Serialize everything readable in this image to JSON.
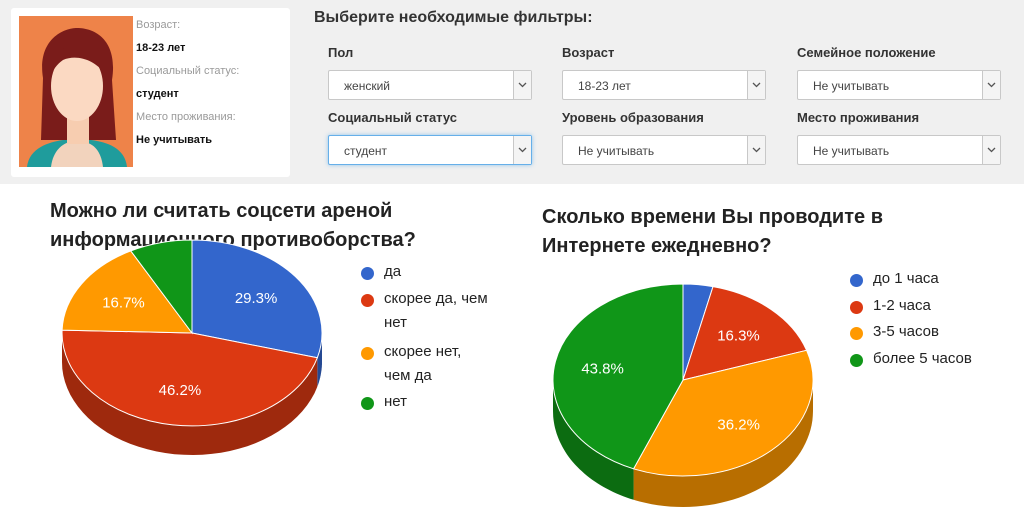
{
  "profile": {
    "age_label": "Возраст:",
    "age_value": "18-23 лет",
    "status_label": "Социальный статус:",
    "status_value": "студент",
    "residence_label": "Место проживания:",
    "residence_value": "Не учитывать",
    "avatar_icon": "female-avatar-icon"
  },
  "filters": {
    "title": "Выберите необходимые фильтры:",
    "items": [
      {
        "label": "Пол",
        "value": "женский"
      },
      {
        "label": "Возраст",
        "value": "18-23 лет"
      },
      {
        "label": "Семейное положение",
        "value": "Не учитывать"
      },
      {
        "label": "Социальный статус",
        "value": "студент"
      },
      {
        "label": "Уровень образования",
        "value": "Не учитывать"
      },
      {
        "label": "Место проживания",
        "value": "Не учитывать"
      }
    ]
  },
  "chart_data": [
    {
      "type": "pie",
      "title_lines": [
        "Можно ли считать соцсети ареной",
        "информационного противоборства?"
      ],
      "legend_position": "right",
      "slices": [
        {
          "label": "да",
          "label_lines": [
            "да"
          ],
          "value": 29.3,
          "color": "#3366cc",
          "data_label": "29.3%"
        },
        {
          "label": "скорее да, чем нет",
          "label_lines": [
            "скорее да, чем",
            "нет"
          ],
          "value": 46.2,
          "color": "#dc3912",
          "data_label": "46.2%"
        },
        {
          "label": "скорее нет, чем да",
          "label_lines": [
            "скорее нет,",
            "чем да"
          ],
          "value": 16.7,
          "color": "#ff9900",
          "data_label": "16.7%"
        },
        {
          "label": "нет",
          "label_lines": [
            "нет"
          ],
          "value": 7.8,
          "color": "#109618",
          "data_label": ""
        }
      ]
    },
    {
      "type": "pie",
      "title_lines": [
        "Сколько времени Вы проводите в",
        "Интернете ежедневно?"
      ],
      "legend_position": "right",
      "slices": [
        {
          "label": "до 1 часа",
          "label_lines": [
            "до 1 часа"
          ],
          "value": 3.7,
          "color": "#3366cc",
          "data_label": ""
        },
        {
          "label": "1-2 часа",
          "label_lines": [
            "1-2 часа"
          ],
          "value": 16.3,
          "color": "#dc3912",
          "data_label": "16.3%"
        },
        {
          "label": "3-5 часов",
          "label_lines": [
            "3-5 часов"
          ],
          "value": 36.2,
          "color": "#ff9900",
          "data_label": "36.2%"
        },
        {
          "label": "более 5 часов",
          "label_lines": [
            "более 5 часов"
          ],
          "value": 43.8,
          "color": "#109618",
          "data_label": "43.8%"
        }
      ]
    }
  ]
}
